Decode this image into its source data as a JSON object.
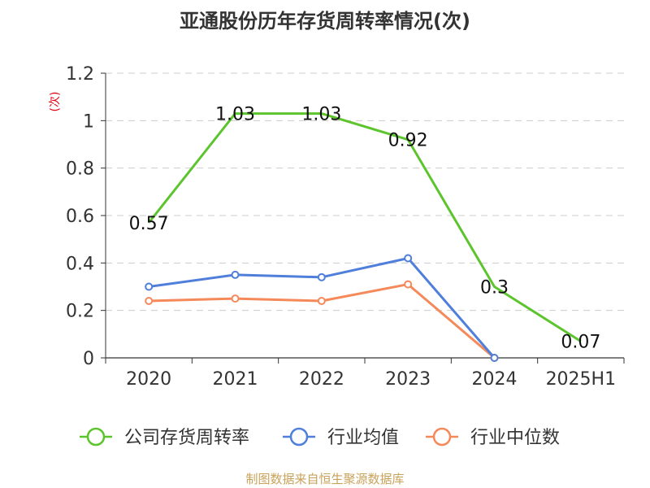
{
  "chart_data": {
    "type": "line",
    "title": "亚通股份历年存货周转率情况(次)",
    "ylabel": "(次)",
    "xlabel": "",
    "categories": [
      "2020",
      "2021",
      "2022",
      "2023",
      "2024",
      "2025H1"
    ],
    "ylim": [
      0,
      1.2
    ],
    "yticks": [
      "0",
      "0.2",
      "0.4",
      "0.6",
      "0.8",
      "1",
      "1.2"
    ],
    "grid": true,
    "legend_position": "bottom",
    "series": [
      {
        "name": "公司存货周转率",
        "color": "#5cc42c",
        "values": [
          0.57,
          1.03,
          1.03,
          0.92,
          0.3,
          0.07
        ],
        "labels": [
          "0.57",
          "1.03",
          "1.03",
          "0.92",
          "0.3",
          "0.07"
        ],
        "markers": false
      },
      {
        "name": "行业均值",
        "color": "#4f7fdb",
        "values": [
          0.3,
          0.35,
          0.34,
          0.42,
          0,
          null
        ],
        "markers": true
      },
      {
        "name": "行业中位数",
        "color": "#f5895a",
        "values": [
          0.24,
          0.25,
          0.24,
          0.31,
          0,
          null
        ],
        "markers": true
      }
    ]
  },
  "source": "制图数据来自恒生聚源数据库"
}
